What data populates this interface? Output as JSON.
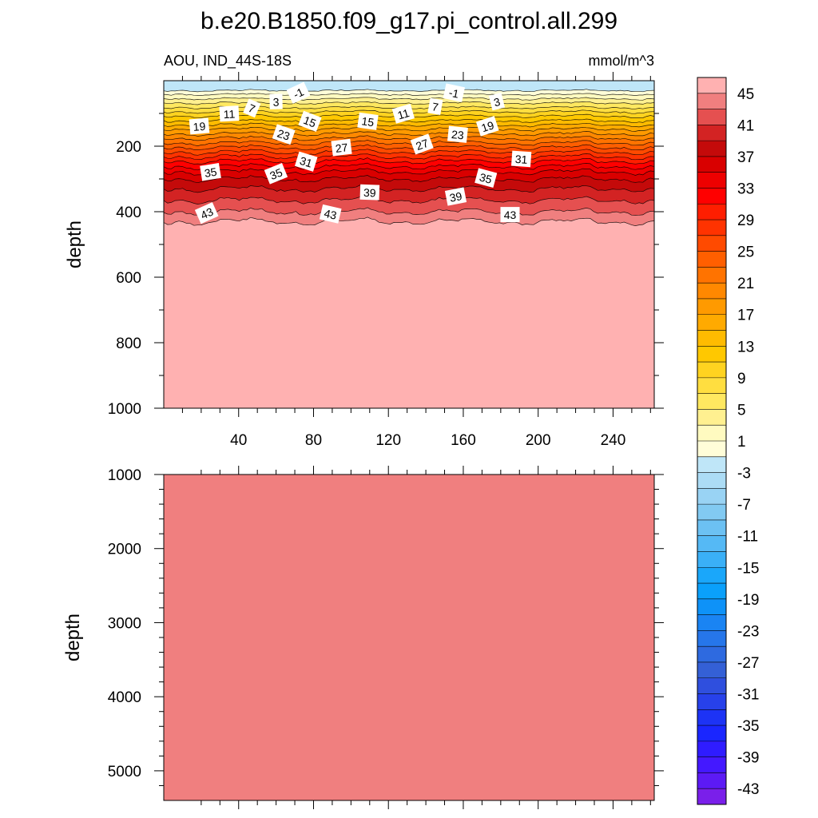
{
  "figure": {
    "title": "b.e20.B1850.f09_g17.pi_control.all.299",
    "left_string": "AOU, IND_44S-18S",
    "right_string": "mmol/m^3"
  },
  "chart_data": [
    {
      "type": "heatmap",
      "panel": "upper",
      "xlabel": "",
      "ylabel": "depth",
      "xlim": [
        0,
        262
      ],
      "ylim": [
        1000,
        0
      ],
      "y_inverted": true,
      "x_ticks": [
        "40",
        "80",
        "120",
        "160",
        "200",
        "240"
      ],
      "x_tick_values": [
        40,
        80,
        120,
        160,
        200,
        240
      ],
      "y_ticks": [
        "200",
        "400",
        "600",
        "800",
        "1000"
      ],
      "y_tick_values": [
        200,
        400,
        600,
        800,
        1000
      ],
      "below_zero_depth": 30,
      "contour_depths": {
        "levels": [
          -1,
          1,
          3,
          5,
          7,
          9,
          11,
          13,
          15,
          17,
          19,
          21,
          23,
          25,
          27,
          29,
          31,
          33,
          35,
          37,
          39,
          41,
          43,
          45
        ],
        "mean_depth": [
          30,
          42,
          55,
          68,
          82,
          95,
          108,
          122,
          135,
          148,
          162,
          176,
          190,
          204,
          218,
          232,
          246,
          262,
          278,
          300,
          330,
          365,
          400,
          430
        ]
      },
      "contour_labels": [
        {
          "text": "-1",
          "x": 72,
          "depth": 38
        },
        {
          "text": "-1",
          "x": 155,
          "depth": 38
        },
        {
          "text": "3",
          "x": 60,
          "depth": 65
        },
        {
          "text": "3",
          "x": 178,
          "depth": 65
        },
        {
          "text": "7",
          "x": 47,
          "depth": 85
        },
        {
          "text": "7",
          "x": 145,
          "depth": 80
        },
        {
          "text": "11",
          "x": 35,
          "depth": 102
        },
        {
          "text": "11",
          "x": 128,
          "depth": 102
        },
        {
          "text": "15",
          "x": 78,
          "depth": 125
        },
        {
          "text": "15",
          "x": 109,
          "depth": 125
        },
        {
          "text": "19",
          "x": 19,
          "depth": 140
        },
        {
          "text": "19",
          "x": 173,
          "depth": 140
        },
        {
          "text": "23",
          "x": 64,
          "depth": 165
        },
        {
          "text": "23",
          "x": 157,
          "depth": 165
        },
        {
          "text": "27",
          "x": 95,
          "depth": 205
        },
        {
          "text": "27",
          "x": 138,
          "depth": 195
        },
        {
          "text": "31",
          "x": 76,
          "depth": 248
        },
        {
          "text": "31",
          "x": 191,
          "depth": 240
        },
        {
          "text": "35",
          "x": 25,
          "depth": 280
        },
        {
          "text": "35",
          "x": 60,
          "depth": 285
        },
        {
          "text": "35",
          "x": 172,
          "depth": 298
        },
        {
          "text": "39",
          "x": 110,
          "depth": 342
        },
        {
          "text": "39",
          "x": 156,
          "depth": 355
        },
        {
          "text": "43",
          "x": 23,
          "depth": 405
        },
        {
          "text": "43",
          "x": 89,
          "depth": 408
        },
        {
          "text": "43",
          "x": 185,
          "depth": 410
        }
      ]
    },
    {
      "type": "heatmap",
      "panel": "lower",
      "xlabel": "",
      "ylabel": "depth",
      "xlim": [
        0,
        262
      ],
      "ylim": [
        5400,
        1000
      ],
      "y_inverted": true,
      "y_ticks": [
        "1000",
        "2000",
        "3000",
        "4000",
        "5000"
      ],
      "y_tick_values": [
        1000,
        2000,
        3000,
        4000,
        5000
      ],
      "fill_level": 45
    }
  ],
  "colorbar": {
    "units": "mmol/m^3",
    "orientation": "vertical",
    "labels": [
      "45",
      "41",
      "37",
      "33",
      "29",
      "25",
      "21",
      "17",
      "13",
      "9",
      "5",
      "1",
      "-3",
      "-7",
      "-11",
      "-15",
      "-19",
      "-23",
      "-27",
      "-31",
      "-35",
      "-39",
      "-43"
    ],
    "colors": [
      "#ffb1b1",
      "#f07f7f",
      "#e55050",
      "#d32323",
      "#c40a0a",
      "#d90000",
      "#ee0000",
      "#ff0000",
      "#ff1e00",
      "#ff3300",
      "#ff4a00",
      "#ff5f00",
      "#ff7300",
      "#ff8800",
      "#ff9a00",
      "#ffaa00",
      "#ffbb00",
      "#ffc800",
      "#ffd320",
      "#ffde40",
      "#ffe860",
      "#fff090",
      "#fffac0",
      "#fffdd8",
      "#bfe6f8",
      "#acdcf5",
      "#99d3f4",
      "#82caf2",
      "#6cc1f3",
      "#55b9f5",
      "#3ab0f7",
      "#1aa7fa",
      "#0aa0fb",
      "#0e92f8",
      "#1a84f3",
      "#2676ea",
      "#2e6ae0",
      "#3460d6",
      "#2f4fde",
      "#2741ea",
      "#1d33f5",
      "#1a26ff",
      "#2f1cff",
      "#4418ff",
      "#5c1af5",
      "#7a1fea"
    ]
  }
}
